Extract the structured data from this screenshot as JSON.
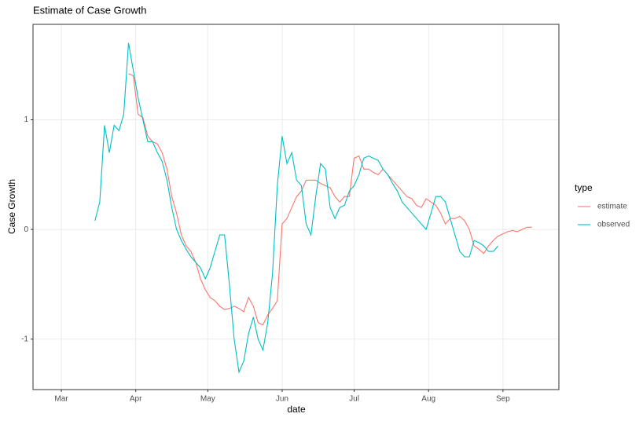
{
  "chart_data": {
    "type": "line",
    "title": "Estimate of Case Growth",
    "x_label": "date",
    "y_label": "Case Growth",
    "legend_title": "type",
    "legend": "right",
    "grid": true,
    "x": [
      14,
      16,
      18,
      20,
      22,
      24,
      26,
      28,
      30,
      32,
      34,
      36,
      38,
      40,
      42,
      44,
      46,
      48,
      50,
      52,
      54,
      56,
      58,
      60,
      62,
      64,
      66,
      68,
      70,
      72,
      74,
      76,
      78,
      80,
      82,
      84,
      86,
      88,
      90,
      92,
      94,
      96,
      98,
      100,
      102,
      104,
      106,
      108,
      110,
      112,
      114,
      116,
      118,
      120,
      122,
      124,
      126,
      128,
      130,
      132,
      134,
      136,
      138,
      140,
      142,
      144,
      146,
      148,
      150,
      152,
      154,
      156,
      158,
      160,
      162,
      164,
      166,
      168,
      170,
      172,
      174,
      176,
      178,
      180,
      182,
      184,
      186,
      188,
      190,
      192,
      194,
      196
    ],
    "xlim": [
      -11.8,
      207.3
    ],
    "xticks": [
      {
        "value": 0,
        "label": "Mar"
      },
      {
        "value": 31,
        "label": "Apr"
      },
      {
        "value": 61,
        "label": "May"
      },
      {
        "value": 92,
        "label": "Jun"
      },
      {
        "value": 122,
        "label": "Jul"
      },
      {
        "value": 153,
        "label": "Aug"
      },
      {
        "value": 184,
        "label": "Sep"
      }
    ],
    "ylim": [
      -1.46,
      1.87
    ],
    "yticks": [
      -1,
      0,
      1
    ],
    "series": [
      {
        "name": "estimate",
        "color": "#F8766D",
        "values": [
          null,
          null,
          null,
          null,
          null,
          null,
          null,
          1.42,
          1.4,
          1.05,
          1.02,
          0.85,
          0.8,
          0.78,
          0.7,
          0.55,
          0.3,
          0.15,
          -0.05,
          -0.15,
          -0.2,
          -0.3,
          -0.45,
          -0.55,
          -0.62,
          -0.65,
          -0.7,
          -0.73,
          -0.72,
          -0.7,
          -0.72,
          -0.75,
          -0.62,
          -0.7,
          -0.85,
          -0.87,
          -0.78,
          -0.72,
          -0.65,
          0.05,
          0.1,
          0.2,
          0.3,
          0.35,
          0.45,
          0.45,
          0.45,
          0.42,
          0.4,
          0.38,
          0.3,
          0.25,
          0.3,
          0.3,
          0.65,
          0.67,
          0.55,
          0.55,
          0.52,
          0.5,
          0.55,
          0.5,
          0.45,
          0.4,
          0.35,
          0.3,
          0.28,
          0.22,
          0.2,
          0.28,
          0.25,
          0.22,
          0.15,
          0.05,
          0.1,
          0.1,
          0.12,
          0.08,
          0.0,
          -0.15,
          -0.18,
          -0.22,
          -0.15,
          -0.1,
          -0.06,
          -0.04,
          -0.02,
          -0.01,
          -0.02,
          0.0,
          0.02,
          0.02
        ]
      },
      {
        "name": "observed",
        "color": "#00BFC4",
        "values": [
          0.08,
          0.25,
          0.95,
          0.7,
          0.95,
          0.9,
          1.05,
          1.7,
          1.45,
          1.2,
          1.0,
          0.8,
          0.8,
          0.7,
          0.62,
          0.45,
          0.2,
          0.0,
          -0.1,
          -0.18,
          -0.25,
          -0.3,
          -0.35,
          -0.45,
          -0.35,
          -0.2,
          -0.05,
          -0.05,
          -0.5,
          -1.0,
          -1.3,
          -1.2,
          -0.95,
          -0.8,
          -1.0,
          -1.1,
          -0.85,
          -0.4,
          0.4,
          0.85,
          0.6,
          0.7,
          0.45,
          0.4,
          0.05,
          -0.05,
          0.3,
          0.6,
          0.55,
          0.2,
          0.1,
          0.2,
          0.22,
          0.35,
          0.4,
          0.5,
          0.65,
          0.67,
          0.65,
          0.63,
          0.55,
          0.5,
          0.42,
          0.35,
          0.25,
          0.2,
          0.15,
          0.1,
          0.05,
          0.0,
          0.15,
          0.3,
          0.3,
          0.25,
          0.1,
          -0.05,
          -0.2,
          -0.25,
          -0.25,
          -0.1,
          -0.12,
          -0.15,
          -0.2,
          -0.2,
          -0.15,
          null,
          null,
          null,
          null,
          null,
          null,
          null
        ]
      }
    ]
  }
}
